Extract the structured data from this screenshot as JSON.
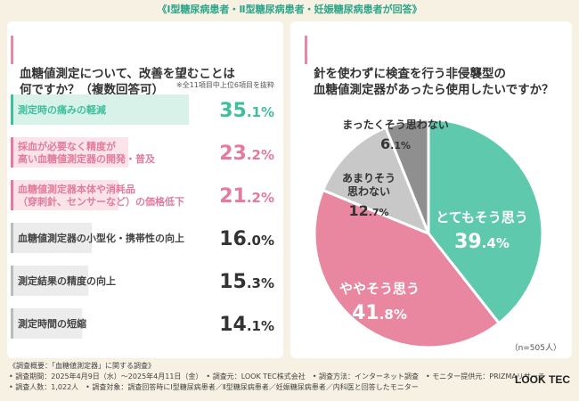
{
  "header": "《Ⅰ型糖尿病患者・Ⅱ型糖尿病患者・妊娠糖尿病患者が回答》",
  "left": {
    "title": "血糖値測定について、改善を望むことは\n何ですか？（複数回答可）",
    "note": "※全11項目中上位6項目を抜粋"
  },
  "right": {
    "title": "針を使わずに検査を行う非侵襲型の\n血糖値測定器があったら使用したいですか？",
    "n_note": "（n=505人）"
  },
  "chart_data": [
    {
      "type": "bar",
      "categories": [
        "測定時の痛みの軽減",
        "採血が必要なく精度が\n高い血糖値測定器の開発・普及",
        "血糖値測定器本体や消耗品\n（穿刺針、センサーなど）の価格低下",
        "血糖値測定器の小型化・携帯性の向上",
        "測定結果の精度の向上",
        "測定時間の短縮"
      ],
      "values": [
        35.1,
        23.2,
        21.2,
        16.0,
        15.3,
        14.1
      ],
      "labels": [
        "35.1",
        "23.2",
        "21.2",
        "16.0",
        "15.3",
        "14.1"
      ],
      "unit": "%",
      "colors": [
        "#3fbf9c",
        "#e27b9d",
        "#e27b9d",
        "#bbbbbb",
        "#bbbbbb",
        "#bbbbbb"
      ]
    },
    {
      "type": "pie",
      "slices": [
        {
          "label": "とてもそう思う",
          "value": 39.4,
          "text": "39.4",
          "color": "#5fc9ae"
        },
        {
          "label": "ややそう思う",
          "value": 41.8,
          "text": "41.8",
          "color": "#e8879f"
        },
        {
          "label": "あまりそう\n思わない",
          "value": 12.7,
          "text": "12.7",
          "color": "#c8c8c8"
        },
        {
          "label": "まったくそう思わない",
          "value": 6.1,
          "text": "6.1",
          "color": "#8f8f8f"
        }
      ],
      "unit": "%"
    }
  ],
  "footer": {
    "line1": "《調査概要：「血糖値測定器」に関する調査》",
    "line2": "• 調査期間：2025年4月9日（水）〜2025年4月11日（金）　• 調査元：LOOK TEC株式会社　• 調査方法：インターネット調査　• モニター提供元：PRIZMAリサーチ",
    "line3": "• 調査人数：1,022人　• 調査対象：調査回答時にⅠ型糖尿病患者／Ⅱ型糖尿病患者／妊娠糖尿病患者／内科医と回答したモニター",
    "brand": "LOOK TEC"
  }
}
